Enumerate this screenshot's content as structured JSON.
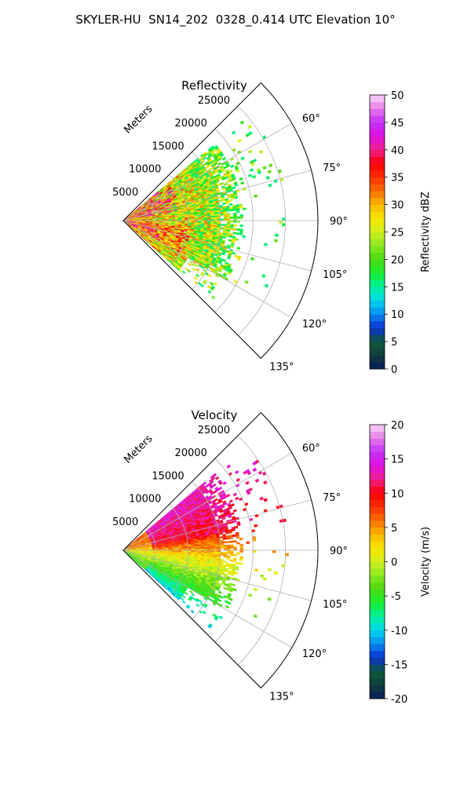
{
  "figure_title": "SKYLER-HU  SN14_202  0328_0.414 UTC Elevation 10°",
  "chart_data": [
    {
      "type": "polar-sector",
      "title": "Reflectivity",
      "radial_label": "Meters",
      "radial_ticks": [
        5000,
        10000,
        15000,
        20000,
        25000
      ],
      "r_max_m": 30000,
      "azimuth_range_deg": [
        45,
        135
      ],
      "azimuth_ticks": [
        "60°",
        "75°",
        "90°",
        "105°",
        "120°",
        "135°"
      ],
      "grid": true,
      "colorbar": {
        "label": "Reflectivity dBZ",
        "min": 0,
        "max": 50,
        "ticks": [
          "0",
          "5",
          "10",
          "15",
          "20",
          "25",
          "30",
          "35",
          "40",
          "45",
          "50"
        ]
      },
      "colormap": [
        "#0a1a5c",
        "#123d3d",
        "#0e5a3a",
        "#0a2fd0",
        "#0a8cf0",
        "#00d8f0",
        "#00f0a0",
        "#18ef30",
        "#4ad810",
        "#88e820",
        "#d0f020",
        "#f8e800",
        "#f8b800",
        "#f87000",
        "#f83000",
        "#f80000",
        "#f0208a",
        "#e010e0",
        "#c030f8",
        "#e878e8",
        "#f8d8f8"
      ],
      "echo_summary": "Dense reflectivity 20–45 dBZ within ~15 km spanning azimuth 50–130°, with isolated weaker cells to 25 km near 55–75°"
    },
    {
      "type": "polar-sector",
      "title": "Velocity",
      "radial_label": "Meters",
      "radial_ticks": [
        5000,
        10000,
        15000,
        20000,
        25000
      ],
      "r_max_m": 30000,
      "azimuth_range_deg": [
        45,
        135
      ],
      "azimuth_ticks": [
        "60°",
        "75°",
        "90°",
        "105°",
        "120°",
        "135°"
      ],
      "grid": true,
      "colorbar": {
        "label": "Velocity (m/s)",
        "min": -20,
        "max": 20,
        "ticks": [
          "-20",
          "-15",
          "-10",
          "-5",
          "0",
          "5",
          "10",
          "15",
          "20"
        ]
      },
      "colormap": [
        "#0a1a5c",
        "#123d3d",
        "#0e5a3a",
        "#0a2fd0",
        "#0a8cf0",
        "#00d8f0",
        "#00f0a0",
        "#18ef30",
        "#4ad810",
        "#88e820",
        "#d0f020",
        "#f8e800",
        "#f8b800",
        "#f87000",
        "#f83000",
        "#f80000",
        "#f0208a",
        "#e010e0",
        "#c030f8",
        "#e878e8",
        "#f8d8f8"
      ],
      "echo_summary": "Outbound velocities 10–15 m/s toward 55–80° azimuth, near zero around 90–110°, inbound -5 to -10 m/s along 115–130°"
    }
  ]
}
